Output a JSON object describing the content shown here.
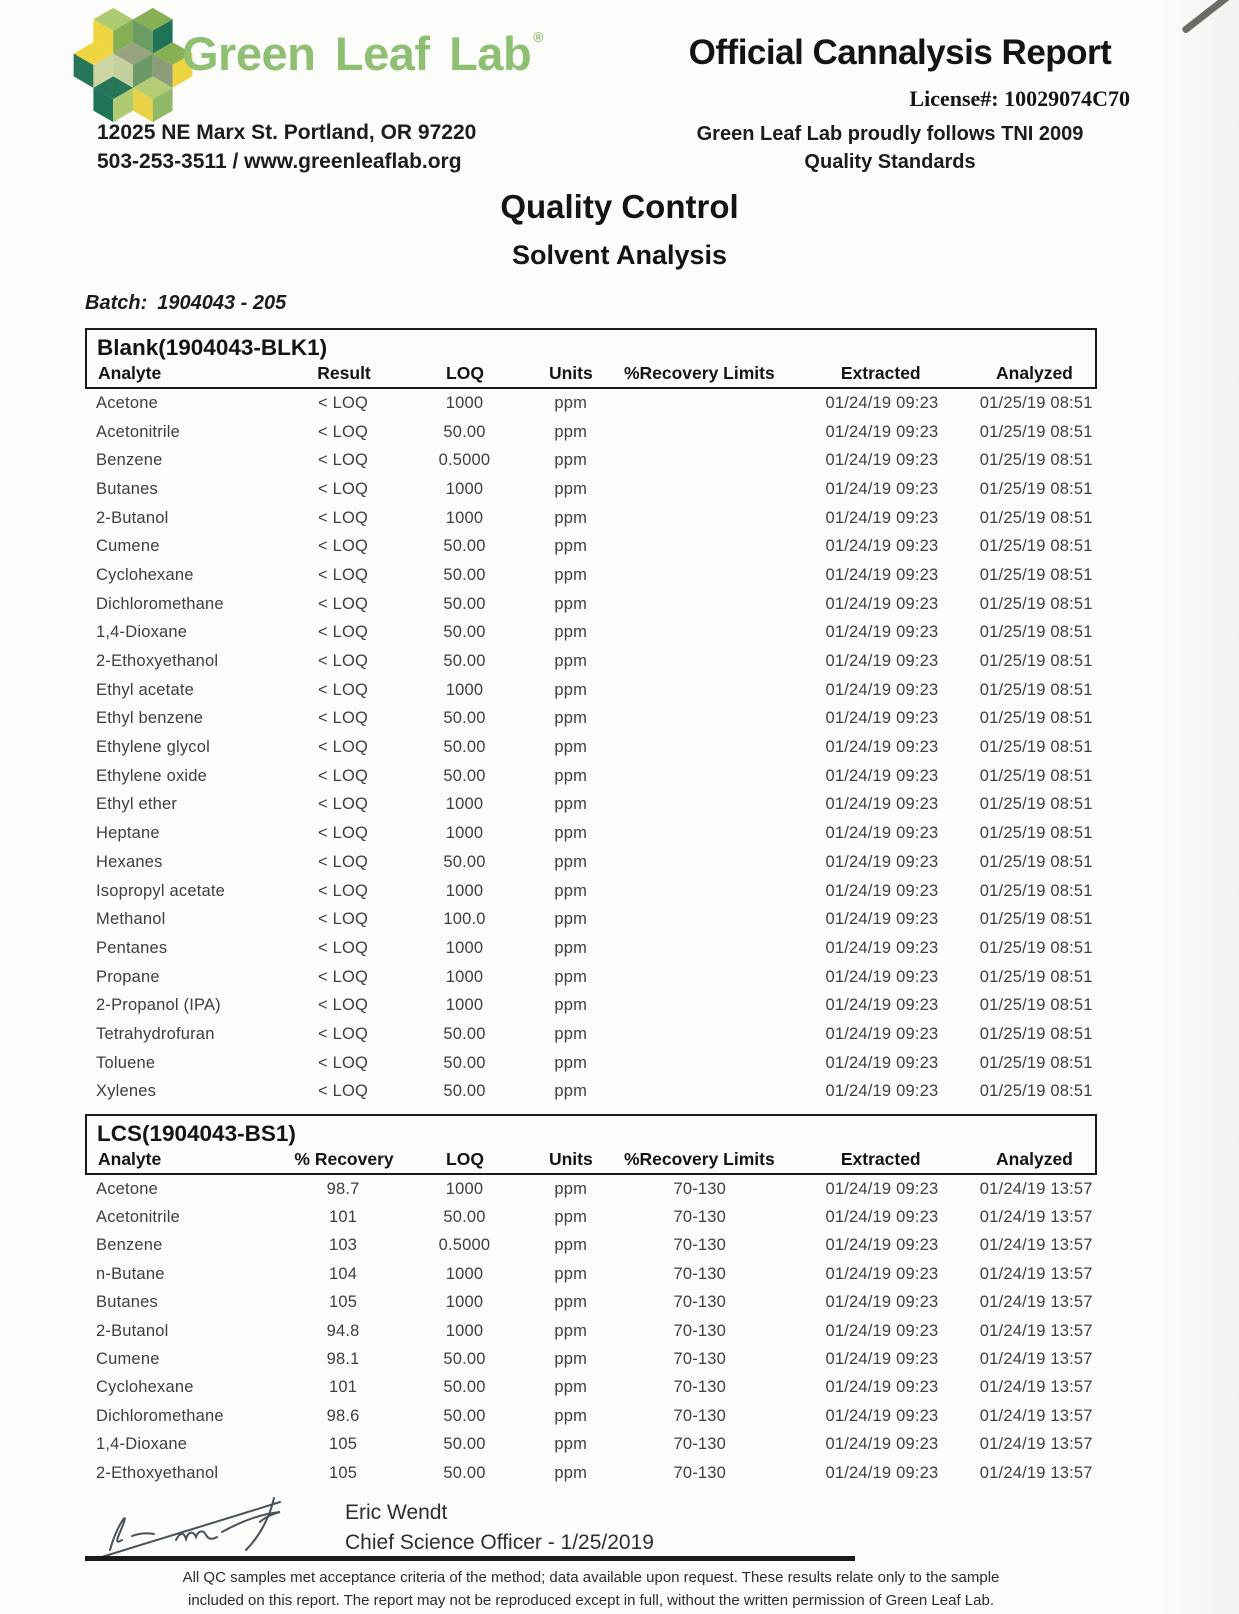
{
  "brand": {
    "name": "Green Leaf Lab",
    "registered_mark": "®",
    "address_line1": "12025 NE Marx St. Portland, OR 97220",
    "address_line2": "503-253-3511 / www.greenleaflab.org",
    "brand_green": "#8fbf72",
    "logo_colors": {
      "yellow": "#eed440",
      "light_green": "#aecb72",
      "mid_green": "#87b055",
      "dark_teal": "#1f7458",
      "sage": "#97a37e"
    }
  },
  "report_header": {
    "title": "Official Cannalysis Report",
    "license": "License#: 10029074C70",
    "tni_line1": "Green Leaf Lab proudly follows TNI 2009",
    "tni_line2": "Quality Standards"
  },
  "section": {
    "heading": "Quality Control",
    "subheading": "Solvent Analysis",
    "batch_label": "Batch:",
    "batch_value": "1904043 - 205"
  },
  "blank_table": {
    "title": "Blank(1904043-BLK1)",
    "columns": [
      "Analyte",
      "Result",
      "LOQ",
      "Units",
      "%Recovery Limits",
      "Extracted",
      "Analyzed"
    ],
    "rows": [
      [
        "Acetone",
        "< LOQ",
        "1000",
        "ppm",
        "",
        "01/24/19 09:23",
        "01/25/19 08:51"
      ],
      [
        "Acetonitrile",
        "< LOQ",
        "50.00",
        "ppm",
        "",
        "01/24/19 09:23",
        "01/25/19 08:51"
      ],
      [
        "Benzene",
        "< LOQ",
        "0.5000",
        "ppm",
        "",
        "01/24/19 09:23",
        "01/25/19 08:51"
      ],
      [
        "Butanes",
        "< LOQ",
        "1000",
        "ppm",
        "",
        "01/24/19 09:23",
        "01/25/19 08:51"
      ],
      [
        "2-Butanol",
        "< LOQ",
        "1000",
        "ppm",
        "",
        "01/24/19 09:23",
        "01/25/19 08:51"
      ],
      [
        "Cumene",
        "< LOQ",
        "50.00",
        "ppm",
        "",
        "01/24/19 09:23",
        "01/25/19 08:51"
      ],
      [
        "Cyclohexane",
        "< LOQ",
        "50.00",
        "ppm",
        "",
        "01/24/19 09:23",
        "01/25/19 08:51"
      ],
      [
        "Dichloromethane",
        "< LOQ",
        "50.00",
        "ppm",
        "",
        "01/24/19 09:23",
        "01/25/19 08:51"
      ],
      [
        "1,4-Dioxane",
        "< LOQ",
        "50.00",
        "ppm",
        "",
        "01/24/19 09:23",
        "01/25/19 08:51"
      ],
      [
        "2-Ethoxyethanol",
        "< LOQ",
        "50.00",
        "ppm",
        "",
        "01/24/19 09:23",
        "01/25/19 08:51"
      ],
      [
        "Ethyl acetate",
        "< LOQ",
        "1000",
        "ppm",
        "",
        "01/24/19 09:23",
        "01/25/19 08:51"
      ],
      [
        "Ethyl benzene",
        "< LOQ",
        "50.00",
        "ppm",
        "",
        "01/24/19 09:23",
        "01/25/19 08:51"
      ],
      [
        "Ethylene glycol",
        "< LOQ",
        "50.00",
        "ppm",
        "",
        "01/24/19 09:23",
        "01/25/19 08:51"
      ],
      [
        "Ethylene oxide",
        "< LOQ",
        "50.00",
        "ppm",
        "",
        "01/24/19 09:23",
        "01/25/19 08:51"
      ],
      [
        "Ethyl ether",
        "< LOQ",
        "1000",
        "ppm",
        "",
        "01/24/19 09:23",
        "01/25/19 08:51"
      ],
      [
        "Heptane",
        "< LOQ",
        "1000",
        "ppm",
        "",
        "01/24/19 09:23",
        "01/25/19 08:51"
      ],
      [
        "Hexanes",
        "< LOQ",
        "50.00",
        "ppm",
        "",
        "01/24/19 09:23",
        "01/25/19 08:51"
      ],
      [
        "Isopropyl acetate",
        "< LOQ",
        "1000",
        "ppm",
        "",
        "01/24/19 09:23",
        "01/25/19 08:51"
      ],
      [
        "Methanol",
        "< LOQ",
        "100.0",
        "ppm",
        "",
        "01/24/19 09:23",
        "01/25/19 08:51"
      ],
      [
        "Pentanes",
        "< LOQ",
        "1000",
        "ppm",
        "",
        "01/24/19 09:23",
        "01/25/19 08:51"
      ],
      [
        "Propane",
        "< LOQ",
        "1000",
        "ppm",
        "",
        "01/24/19 09:23",
        "01/25/19 08:51"
      ],
      [
        "2-Propanol (IPA)",
        "< LOQ",
        "1000",
        "ppm",
        "",
        "01/24/19 09:23",
        "01/25/19 08:51"
      ],
      [
        "Tetrahydrofuran",
        "< LOQ",
        "50.00",
        "ppm",
        "",
        "01/24/19 09:23",
        "01/25/19 08:51"
      ],
      [
        "Toluene",
        "< LOQ",
        "50.00",
        "ppm",
        "",
        "01/24/19 09:23",
        "01/25/19 08:51"
      ],
      [
        "Xylenes",
        "< LOQ",
        "50.00",
        "ppm",
        "",
        "01/24/19 09:23",
        "01/25/19 08:51"
      ]
    ]
  },
  "lcs_table": {
    "title": "LCS(1904043-BS1)",
    "columns": [
      "Analyte",
      "% Recovery",
      "LOQ",
      "Units",
      "%Recovery Limits",
      "Extracted",
      "Analyzed"
    ],
    "rows": [
      [
        "Acetone",
        "98.7",
        "1000",
        "ppm",
        "70-130",
        "01/24/19 09:23",
        "01/24/19 13:57"
      ],
      [
        "Acetonitrile",
        "101",
        "50.00",
        "ppm",
        "70-130",
        "01/24/19 09:23",
        "01/24/19 13:57"
      ],
      [
        "Benzene",
        "103",
        "0.5000",
        "ppm",
        "70-130",
        "01/24/19 09:23",
        "01/24/19 13:57"
      ],
      [
        "n-Butane",
        "104",
        "1000",
        "ppm",
        "70-130",
        "01/24/19 09:23",
        "01/24/19 13:57"
      ],
      [
        "Butanes",
        "105",
        "1000",
        "ppm",
        "70-130",
        "01/24/19 09:23",
        "01/24/19 13:57"
      ],
      [
        "2-Butanol",
        "94.8",
        "1000",
        "ppm",
        "70-130",
        "01/24/19 09:23",
        "01/24/19 13:57"
      ],
      [
        "Cumene",
        "98.1",
        "50.00",
        "ppm",
        "70-130",
        "01/24/19 09:23",
        "01/24/19 13:57"
      ],
      [
        "Cyclohexane",
        "101",
        "50.00",
        "ppm",
        "70-130",
        "01/24/19 09:23",
        "01/24/19 13:57"
      ],
      [
        "Dichloromethane",
        "98.6",
        "50.00",
        "ppm",
        "70-130",
        "01/24/19 09:23",
        "01/24/19 13:57"
      ],
      [
        "1,4-Dioxane",
        "105",
        "50.00",
        "ppm",
        "70-130",
        "01/24/19 09:23",
        "01/24/19 13:57"
      ],
      [
        "2-Ethoxyethanol",
        "105",
        "50.00",
        "ppm",
        "70-130",
        "01/24/19 09:23",
        "01/24/19 13:57"
      ]
    ]
  },
  "signoff": {
    "name": "Eric Wendt",
    "role_date": "Chief Science Officer - 1/25/2019"
  },
  "footer": {
    "line1": "All QC samples met acceptance criteria of the method; data available upon request. These results relate only to the sample",
    "line2": "included on this report. The report may not be reproduced except in full, without the written permission of Green Leaf Lab."
  }
}
